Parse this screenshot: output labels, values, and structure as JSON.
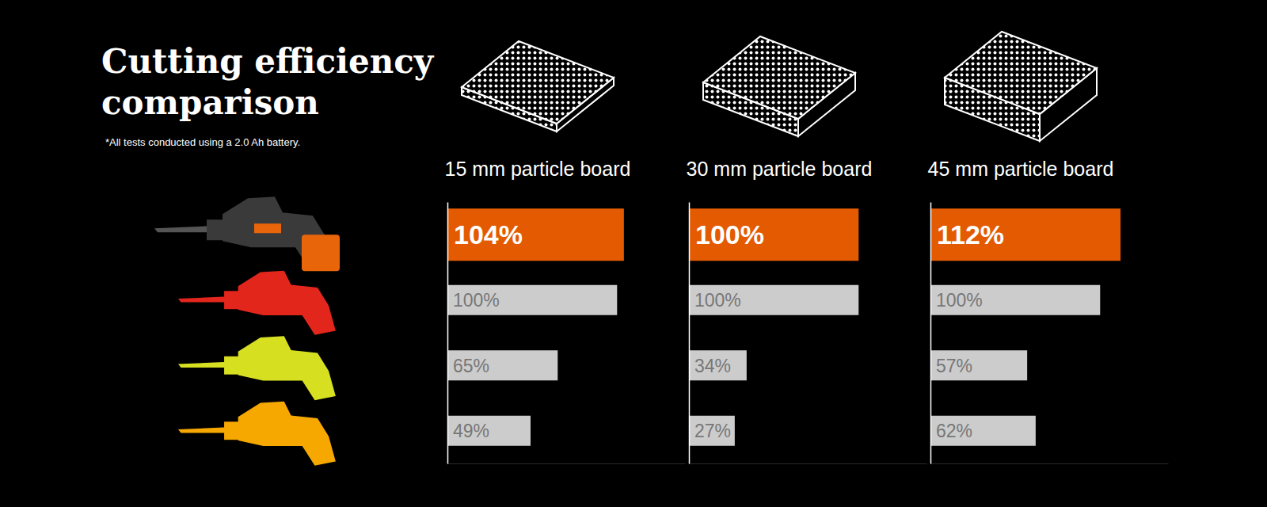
{
  "title": "Cutting efficiency comparison",
  "subtitle": "*All tests conducted using a 2.0 Ah battery.",
  "chart_data": [
    {
      "type": "bar",
      "orientation": "horizontal",
      "title": "15 mm particle board",
      "categories": [
        null,
        null,
        null,
        null
      ],
      "values": [
        104,
        100,
        65,
        49
      ],
      "value_labels": [
        "104%",
        "100%",
        "65%",
        "49%"
      ],
      "colors": [
        "#e35a00",
        "#cccccc",
        "#cccccc",
        "#cccccc"
      ],
      "data_labels": true,
      "xlim": [
        0,
        140
      ],
      "xticks": [],
      "tick_labels": false
    },
    {
      "type": "bar",
      "orientation": "horizontal",
      "title": "30 mm particle board",
      "categories": [
        null,
        null,
        null,
        null
      ],
      "values": [
        100,
        100,
        34,
        27
      ],
      "value_labels": [
        "100%",
        "100%",
        "34%",
        "27%"
      ],
      "colors": [
        "#e35a00",
        "#cccccc",
        "#cccccc",
        "#cccccc"
      ],
      "data_labels": true,
      "xlim": [
        0,
        140
      ],
      "xticks": [],
      "tick_labels": false
    },
    {
      "type": "bar",
      "orientation": "horizontal",
      "title": "45 mm particle board",
      "categories": [
        null,
        null,
        null,
        null
      ],
      "values": [
        112,
        100,
        57,
        62
      ],
      "value_labels": [
        "112%",
        "100%",
        "57%",
        "62%"
      ],
      "colors": [
        "#e35a00",
        "#cccccc",
        "#cccccc",
        "#cccccc"
      ],
      "data_labels": true,
      "xlim": [
        0,
        140
      ],
      "xticks": [],
      "tick_labels": false
    }
  ]
}
